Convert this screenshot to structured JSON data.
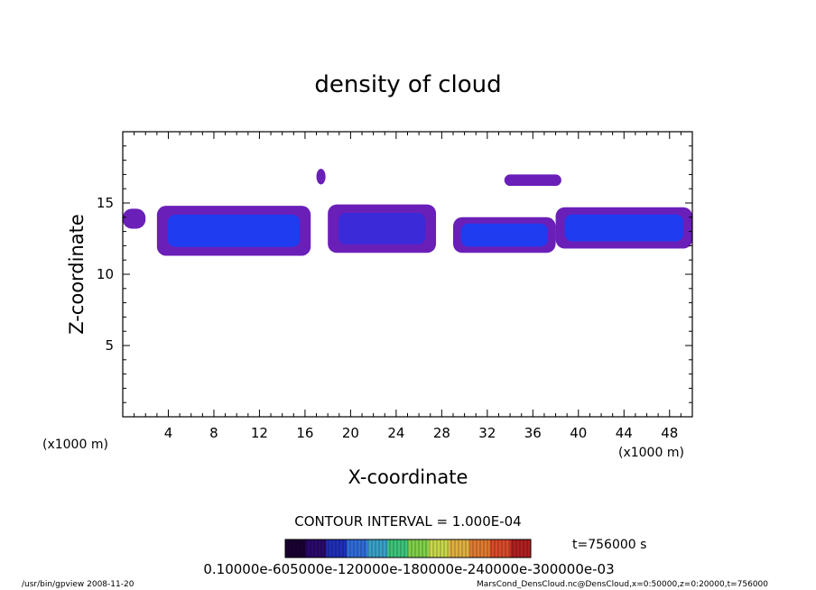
{
  "chart_data": {
    "type": "heatmap",
    "title": "density of cloud",
    "xlabel": "X-coordinate",
    "ylabel": "Z-coordinate",
    "x_unit": "(x1000 m)",
    "y_unit": "(x1000 m)",
    "xlim": [
      0,
      50
    ],
    "ylim": [
      0,
      20
    ],
    "x_ticks": [
      "4",
      "8",
      "12",
      "16",
      "20",
      "24",
      "28",
      "32",
      "36",
      "40",
      "44",
      "48"
    ],
    "y_ticks": [
      "5",
      "10",
      "15"
    ],
    "x_tick_values": [
      4,
      8,
      12,
      16,
      20,
      24,
      28,
      32,
      36,
      40,
      44,
      48
    ],
    "y_tick_values": [
      5,
      10,
      15
    ],
    "contour_interval": "CONTOUR INTERVAL = 1.000E-04",
    "time_label": "t=756000 s",
    "colorbar_labels": "0.10000e-605000e-120000e-180000e-240000e-300000e-03",
    "colorbar_colors": [
      "#1a0033",
      "#2a0a6a",
      "#1f2fb8",
      "#2f6cd8",
      "#39a0c8",
      "#3cc47a",
      "#7fd04a",
      "#c8d84a",
      "#e0b040",
      "#e07a30",
      "#d84a2a",
      "#b02020"
    ],
    "cloud_colors": {
      "low": "#6a1fb8",
      "mid": "#3a2ad8",
      "high": "#1f3cf0"
    },
    "cloud_regions": [
      {
        "name": "left-edge",
        "x": [
          0,
          2
        ],
        "z": [
          13.2,
          14.6
        ],
        "level": "low"
      },
      {
        "name": "main-left",
        "x": [
          3,
          16.5
        ],
        "z": [
          11.3,
          14.8
        ],
        "level": "high"
      },
      {
        "name": "top-small",
        "x": [
          17,
          17.8
        ],
        "z": [
          16.3,
          17.4
        ],
        "level": "low"
      },
      {
        "name": "center",
        "x": [
          18,
          27.5
        ],
        "z": [
          11.5,
          14.9
        ],
        "level": "mid"
      },
      {
        "name": "right-center",
        "x": [
          29,
          38
        ],
        "z": [
          11.5,
          14.0
        ],
        "level": "high"
      },
      {
        "name": "top-right",
        "x": [
          33.5,
          38.5
        ],
        "z": [
          16.2,
          17.0
        ],
        "level": "low"
      },
      {
        "name": "right-edge",
        "x": [
          38,
          50
        ],
        "z": [
          11.8,
          14.7
        ],
        "level": "high"
      }
    ]
  },
  "footer": {
    "left": "/usr/bin/gpview   2008-11-20",
    "right": "MarsCond_DensCloud.nc@DensCloud,x=0:50000,z=0:20000,t=756000"
  }
}
